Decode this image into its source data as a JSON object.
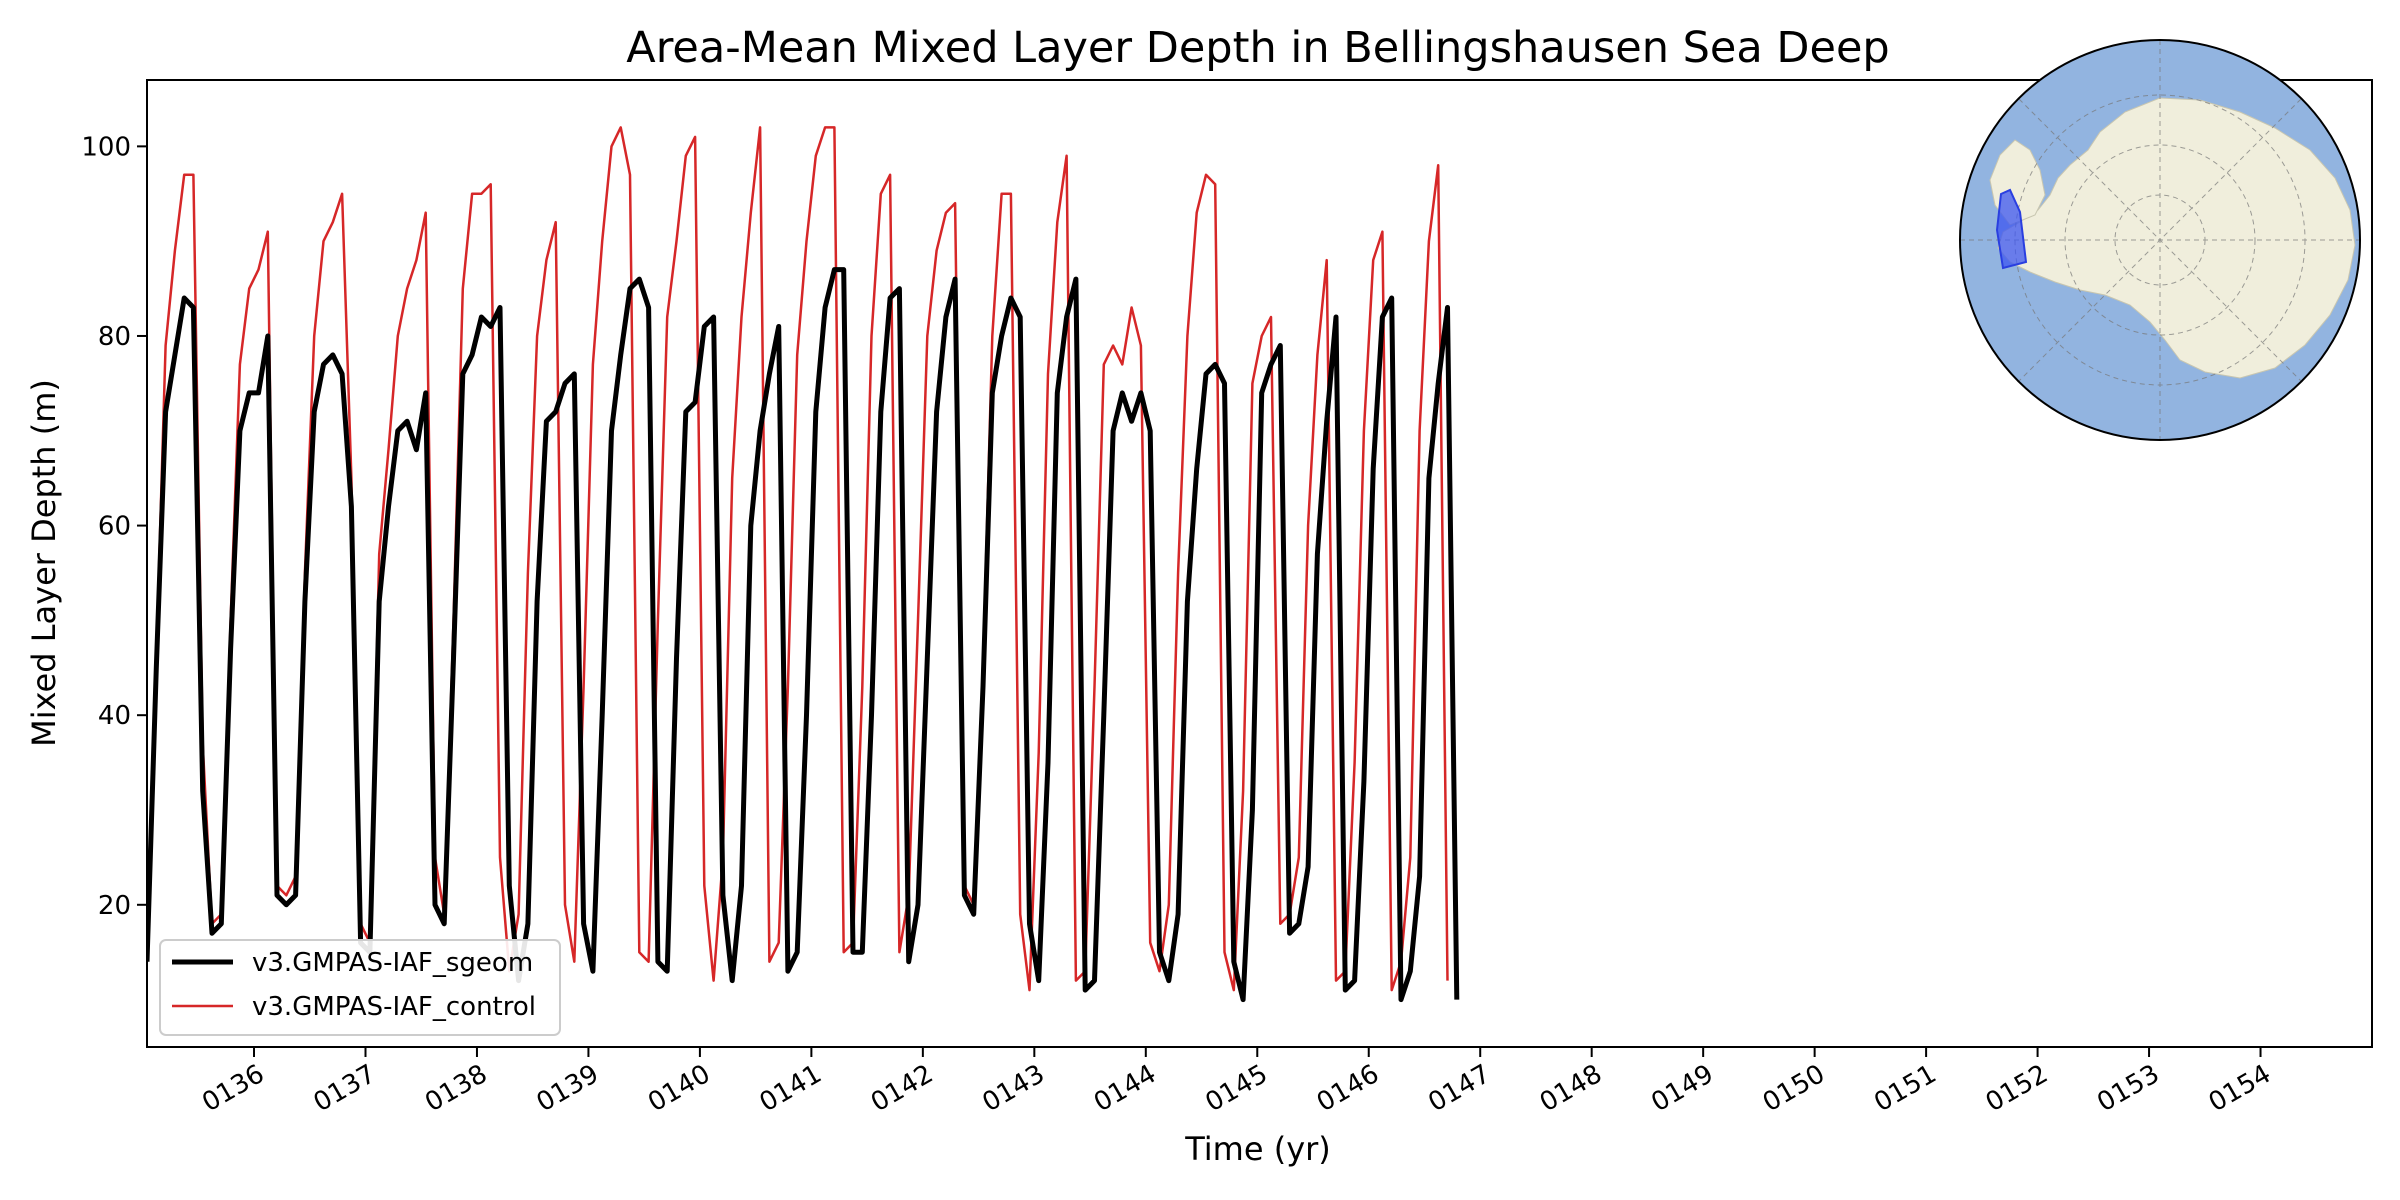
{
  "chart_data": {
    "type": "line",
    "title": "Area-Mean Mixed Layer Depth in Bellingshausen Sea Deep",
    "xlabel": "Time (yr)",
    "ylabel": "Mixed Layer Depth (m)",
    "xlim": [
      135.04,
      155.0
    ],
    "ylim": [
      5,
      107
    ],
    "x_ticks": [
      136,
      137,
      138,
      139,
      140,
      141,
      142,
      143,
      144,
      145,
      146,
      147,
      148,
      149,
      150,
      151,
      152,
      153,
      154
    ],
    "x_tick_labels": [
      "0136",
      "0137",
      "0138",
      "0139",
      "0140",
      "0141",
      "0142",
      "0143",
      "0144",
      "0145",
      "0146",
      "0147",
      "0148",
      "0149",
      "0150",
      "0151",
      "0152",
      "0153",
      "0154"
    ],
    "y_ticks": [
      20,
      40,
      60,
      80,
      100
    ],
    "y_tick_labels": [
      "20",
      "40",
      "60",
      "80",
      "100"
    ],
    "legend_position": "lower-left",
    "grid": false,
    "inset_map": "Antarctic polar map with Bellingshausen Sea Deep region highlighted",
    "colors": {
      "ocean": "#92b4e0",
      "land": "#f0eedc",
      "region": "#3c55f0"
    },
    "monthly_pattern_note": "12 monthly values per year starting at year 135.04 (Jan) spaced 1/12 yr",
    "series": [
      {
        "name": "v3.GMPAS-IAF_sgeom",
        "color": "#000000",
        "linewidth": 5,
        "x_start": 135.04,
        "x_step": 0.08333,
        "values": [
          14,
          45,
          72,
          78,
          84,
          83,
          32,
          17,
          18,
          47,
          70,
          74,
          74,
          80,
          21,
          20,
          21,
          52,
          72,
          77,
          78,
          76,
          62,
          16,
          15,
          52,
          62,
          70,
          71,
          68,
          74,
          20,
          18,
          46,
          76,
          78,
          82,
          81,
          83,
          22,
          12,
          18,
          52,
          71,
          72,
          75,
          76,
          18,
          13,
          40,
          70,
          78,
          85,
          86,
          83,
          14,
          13,
          46,
          72,
          73,
          81,
          82,
          21,
          12,
          22,
          60,
          70,
          76,
          81,
          13,
          15,
          40,
          72,
          83,
          87,
          87,
          15,
          15,
          40,
          72,
          84,
          85,
          14,
          20,
          46,
          72,
          82,
          86,
          21,
          19,
          43,
          74,
          80,
          84,
          82,
          18,
          12,
          35,
          74,
          82,
          86,
          11,
          12,
          40,
          70,
          74,
          71,
          74,
          70,
          15,
          12,
          19,
          52,
          66,
          76,
          77,
          75,
          14,
          10,
          30,
          74,
          77,
          79,
          17,
          18,
          24,
          57,
          71,
          82,
          11,
          12,
          33,
          66,
          82,
          84,
          10,
          13,
          23,
          65,
          75,
          83,
          10
        ]
      },
      {
        "name": "v3.GMPAS-IAF_control",
        "color": "#d62728",
        "linewidth": 2.5,
        "x_start": 135.04,
        "x_step": 0.08333,
        "values": [
          16,
          46,
          79,
          89,
          97,
          97,
          37,
          18,
          19,
          50,
          77,
          85,
          87,
          91,
          22,
          21,
          23,
          55,
          80,
          90,
          92,
          95,
          65,
          18,
          16,
          57,
          68,
          80,
          85,
          88,
          93,
          25,
          19,
          50,
          85,
          95,
          95,
          96,
          25,
          13,
          19,
          55,
          80,
          88,
          92,
          20,
          14,
          43,
          77,
          90,
          100,
          102,
          97,
          15,
          14,
          50,
          82,
          90,
          99,
          101,
          22,
          12,
          25,
          65,
          82,
          93,
          102,
          14,
          16,
          43,
          78,
          90,
          99,
          102,
          102,
          15,
          16,
          43,
          80,
          95,
          97,
          15,
          21,
          50,
          80,
          89,
          93,
          94,
          22,
          20,
          45,
          80,
          95,
          95,
          19,
          11,
          36,
          76,
          92,
          99,
          12,
          13,
          43,
          77,
          79,
          77,
          83,
          79,
          16,
          13,
          20,
          55,
          80,
          93,
          97,
          96,
          15,
          11,
          32,
          75,
          80,
          82,
          18,
          19,
          25,
          60,
          78,
          88,
          12,
          13,
          35,
          70,
          88,
          91,
          11,
          14,
          25,
          70,
          90,
          98,
          12
        ]
      }
    ]
  }
}
